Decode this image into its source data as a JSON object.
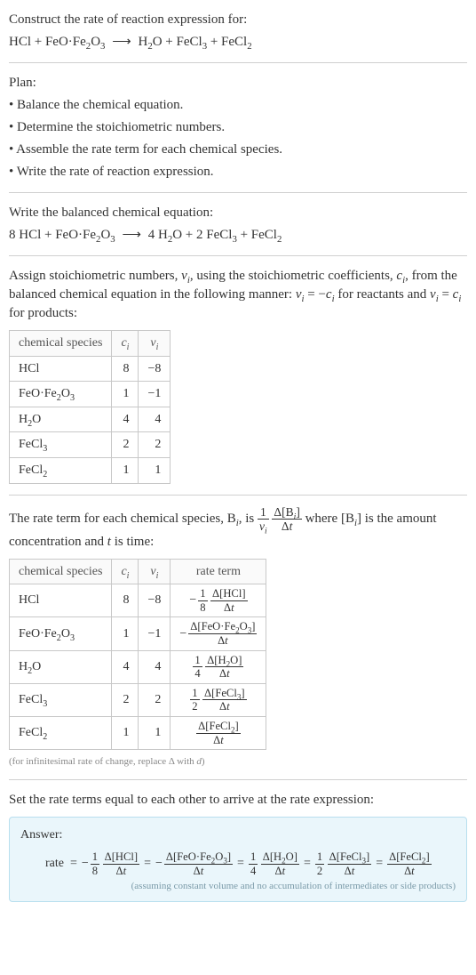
{
  "intro": {
    "line1": "Construct the rate of reaction expression for:",
    "unbalanced": "HCl + FeO·Fe<sub>2</sub>O<sub>3</sub> <span class='arrow'>⟶</span> H<sub>2</sub>O + FeCl<sub>3</sub> + FeCl<sub>2</sub>"
  },
  "plan": {
    "heading": "Plan:",
    "items": [
      "• Balance the chemical equation.",
      "• Determine the stoichiometric numbers.",
      "• Assemble the rate term for each chemical species.",
      "• Write the rate of reaction expression."
    ]
  },
  "balanced": {
    "heading": "Write the balanced chemical equation:",
    "eq": "8 HCl + FeO·Fe<sub>2</sub>O<sub>3</sub> <span class='arrow'>⟶</span> 4 H<sub>2</sub>O + 2 FeCl<sub>3</sub> + FeCl<sub>2</sub>"
  },
  "assign": {
    "text": "Assign stoichiometric numbers, <i>ν<sub>i</sub></i>, using the stoichiometric coefficients, <i>c<sub>i</sub></i>, from the balanced chemical equation in the following manner: <i>ν<sub>i</sub></i> = −<i>c<sub>i</sub></i> for reactants and <i>ν<sub>i</sub></i> = <i>c<sub>i</sub></i> for products:"
  },
  "table1": {
    "headers": [
      "chemical species",
      "<i>c<sub>i</sub></i>",
      "<i>ν<sub>i</sub></i>"
    ],
    "rows": [
      {
        "species": "HCl",
        "c": "8",
        "nu": "−8"
      },
      {
        "species": "FeO·Fe<sub>2</sub>O<sub>3</sub>",
        "c": "1",
        "nu": "−1"
      },
      {
        "species": "H<sub>2</sub>O",
        "c": "4",
        "nu": "4"
      },
      {
        "species": "FeCl<sub>3</sub>",
        "c": "2",
        "nu": "2"
      },
      {
        "species": "FeCl<sub>2</sub>",
        "c": "1",
        "nu": "1"
      }
    ]
  },
  "rateterm": {
    "text_pre": "The rate term for each chemical species, B<sub><i>i</i></sub>, is ",
    "text_post": " where [B<sub><i>i</i></sub>] is the amount concentration and <i>t</i> is time:",
    "frac1": {
      "num": "1",
      "den": "<i>ν<sub>i</sub></i>"
    },
    "frac2": {
      "num": "Δ[B<sub><i>i</i></sub>]",
      "den": "Δ<i>t</i>"
    }
  },
  "table2": {
    "headers": [
      "chemical species",
      "<i>c<sub>i</sub></i>",
      "<i>ν<sub>i</sub></i>",
      "rate term"
    ],
    "rows": [
      {
        "species": "HCl",
        "c": "8",
        "nu": "−8",
        "rt": "<span class='neg'>−</span><span class='frac'><span class='num'>1</span><span class='den'>8</span></span> <span class='frac'><span class='num'>Δ[HCl]</span><span class='den'>Δ<i>t</i></span></span>"
      },
      {
        "species": "FeO·Fe<sub>2</sub>O<sub>3</sub>",
        "c": "1",
        "nu": "−1",
        "rt": "<span class='neg'>−</span><span class='frac'><span class='num'>Δ[FeO·Fe<sub>2</sub>O<sub>3</sub>]</span><span class='den'>Δ<i>t</i></span></span>"
      },
      {
        "species": "H<sub>2</sub>O",
        "c": "4",
        "nu": "4",
        "rt": "<span class='frac'><span class='num'>1</span><span class='den'>4</span></span> <span class='frac'><span class='num'>Δ[H<sub>2</sub>O]</span><span class='den'>Δ<i>t</i></span></span>"
      },
      {
        "species": "FeCl<sub>3</sub>",
        "c": "2",
        "nu": "2",
        "rt": "<span class='frac'><span class='num'>1</span><span class='den'>2</span></span> <span class='frac'><span class='num'>Δ[FeCl<sub>3</sub>]</span><span class='den'>Δ<i>t</i></span></span>"
      },
      {
        "species": "FeCl<sub>2</sub>",
        "c": "1",
        "nu": "1",
        "rt": "<span class='frac'><span class='num'>Δ[FeCl<sub>2</sub>]</span><span class='den'>Δ<i>t</i></span></span>"
      }
    ],
    "note": "(for infinitesimal rate of change, replace Δ with <i>d</i>)"
  },
  "final": {
    "heading": "Set the rate terms equal to each other to arrive at the rate expression:",
    "answer_label": "Answer:",
    "rate_eq": "<span class='whole'>rate</span><span class='eq'>=</span><span class='neg'>−</span><span class='frac'><span class='num'>1</span><span class='den'>8</span></span> <span class='frac'><span class='num'>Δ[HCl]</span><span class='den'>Δ<i>t</i></span></span><span class='eq'>=</span><span class='neg'>−</span><span class='frac'><span class='num'>Δ[FeO·Fe<sub>2</sub>O<sub>3</sub>]</span><span class='den'>Δ<i>t</i></span></span><span class='eq'>=</span><span class='frac'><span class='num'>1</span><span class='den'>4</span></span> <span class='frac'><span class='num'>Δ[H<sub>2</sub>O]</span><span class='den'>Δ<i>t</i></span></span><span class='eq'>=</span><span class='frac'><span class='num'>1</span><span class='den'>2</span></span> <span class='frac'><span class='num'>Δ[FeCl<sub>3</sub>]</span><span class='den'>Δ<i>t</i></span></span><span class='eq'>=</span><span class='frac'><span class='num'>Δ[FeCl<sub>2</sub>]</span><span class='den'>Δ<i>t</i></span></span>",
    "note": "(assuming constant volume and no accumulation of intermediates or side products)"
  },
  "colors": {
    "text": "#333333",
    "rule": "#d0d0d0",
    "table_border": "#c8c8c8",
    "answer_bg": "#eaf6fb",
    "answer_border": "#b8dfef",
    "note": "#888888"
  }
}
